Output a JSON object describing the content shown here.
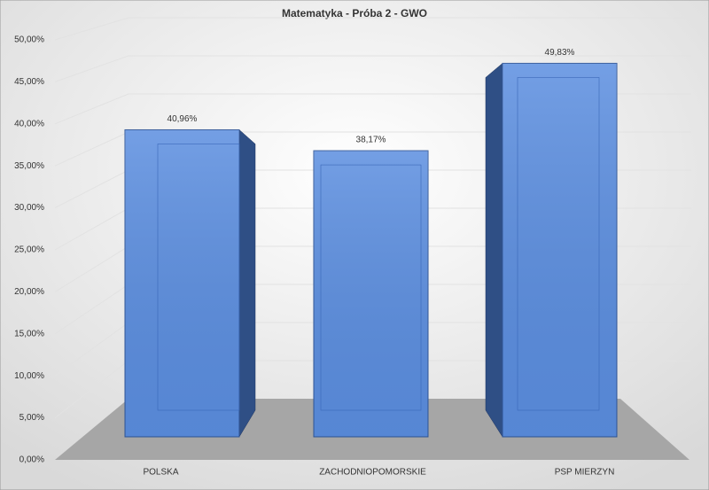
{
  "chart_data": {
    "type": "bar3d",
    "title": "Matematyka - Próba 2 - GWO",
    "categories": [
      "POLSKA",
      "ZACHODNIOPOMORSKIE",
      "PSP MIERZYN"
    ],
    "values": [
      40.96,
      38.17,
      49.83
    ],
    "value_labels": [
      "40,96%",
      "38,17%",
      "49,83%"
    ],
    "color": "#5b8ee0",
    "ylim": [
      0,
      50
    ],
    "yticks": [
      {
        "value": 0,
        "label": "0,00%"
      },
      {
        "value": 5,
        "label": "5,00%"
      },
      {
        "value": 10,
        "label": "10,00%"
      },
      {
        "value": 15,
        "label": "15,00%"
      },
      {
        "value": 20,
        "label": "20,00%"
      },
      {
        "value": 25,
        "label": "25,00%"
      },
      {
        "value": 30,
        "label": "30,00%"
      },
      {
        "value": 35,
        "label": "35,00%"
      },
      {
        "value": 40,
        "label": "40,00%"
      },
      {
        "value": 45,
        "label": "45,00%"
      },
      {
        "value": 50,
        "label": "50,00%"
      }
    ],
    "grid": true
  }
}
